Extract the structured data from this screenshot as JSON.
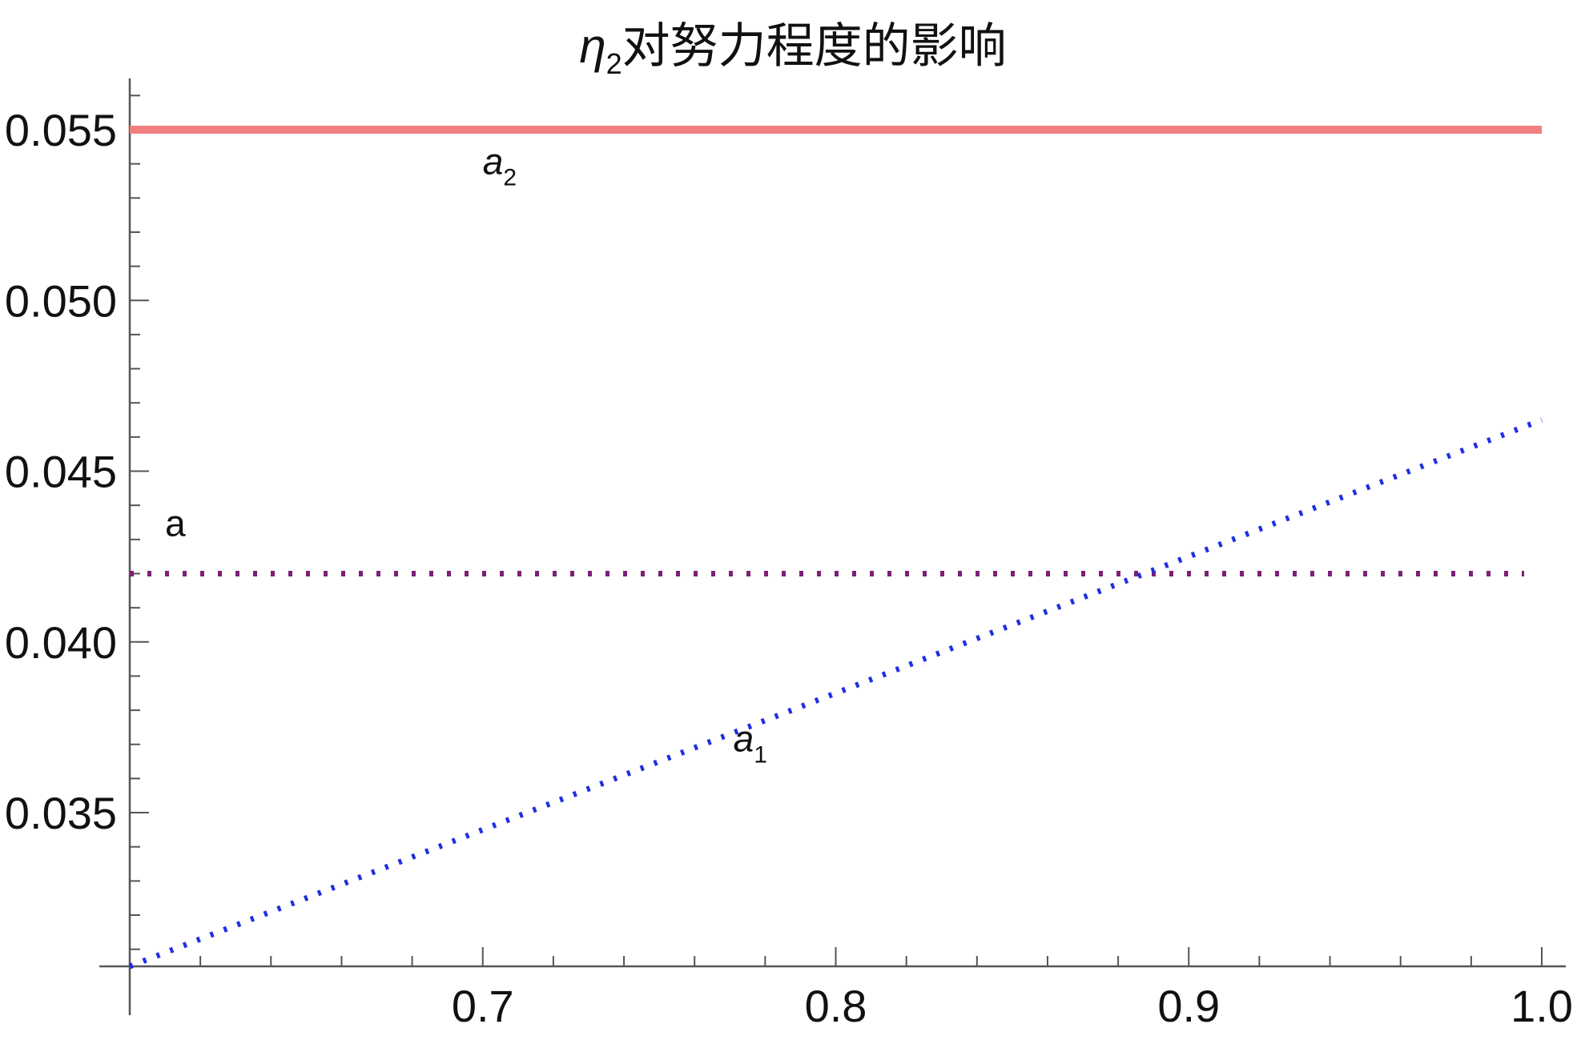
{
  "chart_data": {
    "type": "line",
    "title": {
      "symbol": "η",
      "subscript": "2",
      "text": "对努力程度的影响"
    },
    "xlabel": "",
    "ylabel": "",
    "xlim": [
      0.6,
      1.0
    ],
    "ylim": [
      0.0305,
      0.0565
    ],
    "x_ticks": [
      {
        "value": 0.7,
        "label": "0.7"
      },
      {
        "value": 0.8,
        "label": "0.8"
      },
      {
        "value": 0.9,
        "label": "0.9"
      },
      {
        "value": 1.0,
        "label": "1.0"
      }
    ],
    "x_minor_step": 0.02,
    "y_ticks": [
      {
        "value": 0.035,
        "label": "0.035"
      },
      {
        "value": 0.04,
        "label": "0.040"
      },
      {
        "value": 0.045,
        "label": "0.045"
      },
      {
        "value": 0.05,
        "label": "0.050"
      },
      {
        "value": 0.055,
        "label": "0.055"
      }
    ],
    "y_minor_step": 0.001,
    "grid": false,
    "series": [
      {
        "key": "a2",
        "label_main": "a",
        "label_sub": "2",
        "style": "solid",
        "color": "#f08080",
        "x": [
          0.6,
          1.0
        ],
        "y": [
          0.055,
          0.055
        ],
        "label_at": [
          0.7,
          0.0537
        ]
      },
      {
        "key": "a",
        "label_main": "a",
        "label_sub": "",
        "style": "dotted",
        "color": "#7b1f7a",
        "x": [
          0.6,
          0.995
        ],
        "y": [
          0.042,
          0.042
        ],
        "label_at": [
          0.61,
          0.0431
        ]
      },
      {
        "key": "a1",
        "label_main": "a",
        "label_sub": "1",
        "style": "dotted",
        "color": "#1f2fe0",
        "x": [
          0.6,
          1.0
        ],
        "y": [
          0.0305,
          0.0465
        ],
        "label_at": [
          0.771,
          0.0368
        ]
      }
    ]
  }
}
